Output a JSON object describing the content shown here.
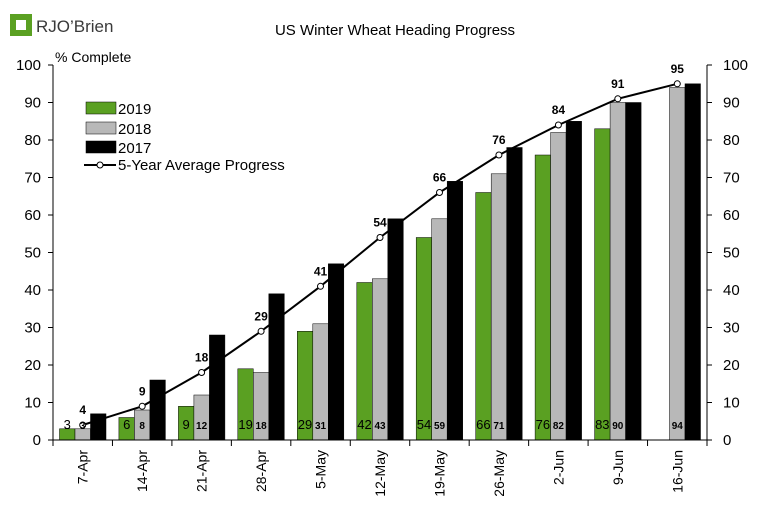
{
  "logo": {
    "text_main": "RJO",
    "text_apostrophe": "’",
    "text_tail": "Brien"
  },
  "chart_data": {
    "type": "bar",
    "title": "US Winter Wheat Heading Progress",
    "ylabel": "% Complete",
    "xlabel": "",
    "ylim": [
      0,
      100
    ],
    "yticks": [
      0,
      10,
      20,
      30,
      40,
      50,
      60,
      70,
      80,
      90,
      100
    ],
    "categories": [
      "7-Apr",
      "14-Apr",
      "21-Apr",
      "28-Apr",
      "5-May",
      "12-May",
      "19-May",
      "26-May",
      "2-Jun",
      "9-Jun",
      "16-Jun"
    ],
    "series": [
      {
        "name": "2019",
        "color": "#5aa022",
        "values": [
          3,
          6,
          9,
          19,
          29,
          42,
          54,
          66,
          76,
          83,
          null
        ]
      },
      {
        "name": "2018",
        "color": "#b8b8b8",
        "values": [
          3,
          8,
          12,
          18,
          31,
          43,
          59,
          71,
          82,
          90,
          94
        ]
      },
      {
        "name": "2017",
        "color": "#000000",
        "values": [
          7,
          16,
          28,
          39,
          47,
          59,
          69,
          78,
          85,
          90,
          95
        ]
      }
    ],
    "average": {
      "name": "5-Year Average Progress",
      "values": [
        4,
        9,
        18,
        29,
        41,
        54,
        66,
        76,
        84,
        91,
        95
      ]
    },
    "legend_position": "top-left"
  }
}
